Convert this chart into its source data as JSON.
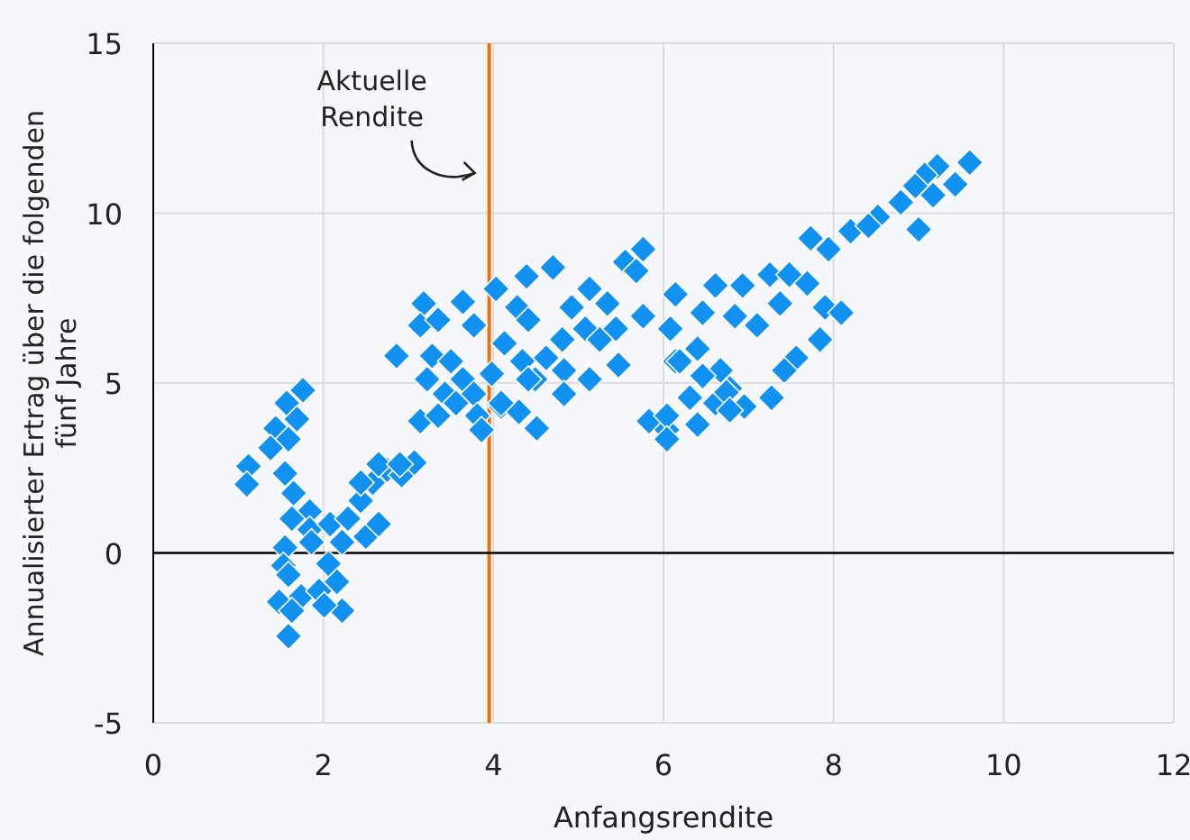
{
  "chart_data": {
    "type": "scatter",
    "xlabel": "Anfangsrendite",
    "ylabel": "Annualisierter Ertrag über die folgenden\nfünf Jahre",
    "xlim": [
      0,
      12
    ],
    "xticks": [
      0,
      2,
      4,
      6,
      8,
      10,
      12
    ],
    "ylim": [
      -5,
      15
    ],
    "yticks": [
      -5,
      0,
      5,
      10,
      15
    ],
    "grid": true,
    "marker": "diamond",
    "ref_lines": [
      {
        "axis": "x",
        "value": 3.95,
        "color": "#e8730c"
      },
      {
        "axis": "y",
        "value": 0,
        "color": "#000000"
      }
    ],
    "annotations": [
      {
        "text": "Aktuelle\nRendite",
        "x": 3.95,
        "y": 11.5
      }
    ],
    "series": [
      {
        "color": "#1191f0",
        "x": [
          1.76,
          1.57,
          1.44,
          1.69,
          1.59,
          1.38,
          1.12,
          1.1,
          1.55,
          1.65,
          1.84,
          1.63,
          1.55,
          1.53,
          1.59,
          1.48,
          1.74,
          2.06,
          2.16,
          1.95,
          2.22,
          1.63,
          1.59,
          2.01,
          1.84,
          2.08,
          2.29,
          2.5,
          2.44,
          2.58,
          2.75,
          2.92,
          3.07,
          2.65,
          2.22,
          1.86,
          2.86,
          3.18,
          3.14,
          3.35,
          3.64,
          3.77,
          3.28,
          3.5,
          3.22,
          3.43,
          3.64,
          3.77,
          3.14,
          3.35,
          3.56,
          3.81,
          3.86,
          4.09,
          4.3,
          4.39,
          4.28,
          4.41,
          4.13,
          4.34,
          3.98,
          4.49,
          5.76,
          5.55,
          4.7,
          5.13,
          4.92,
          5.34,
          5.76,
          6.14,
          6.08,
          5.08,
          5.25,
          5.44,
          5.47,
          4.81,
          4.62,
          4.83,
          5.13,
          4.83,
          4.41,
          4.09,
          4.51,
          5.83,
          6.04,
          6.31,
          6.14,
          6.4,
          2.65,
          2.9,
          2.44,
          7.73,
          8.2,
          7.94,
          6.61,
          6.93,
          7.25,
          7.48,
          7.69,
          7.37,
          7.1,
          6.84,
          6.46,
          7.9,
          8.09,
          7.84,
          7.56,
          7.42,
          7.27,
          6.95,
          6.78,
          6.67,
          6.46,
          6.61,
          6.4,
          6.04,
          6.04,
          6.19,
          9.6,
          9.22,
          9.07,
          9.43,
          9.17,
          8.79,
          8.96,
          8.52,
          8.41,
          9.0,
          5.68,
          6.74,
          6.78,
          4.03
        ],
        "values": [
          4.79,
          4.41,
          3.67,
          3.94,
          3.35,
          3.09,
          2.55,
          2.02,
          2.34,
          1.76,
          1.22,
          1.01,
          0.16,
          -0.37,
          -0.64,
          -1.44,
          -1.28,
          -0.32,
          -0.85,
          -1.12,
          -1.7,
          -1.7,
          -2.45,
          -1.54,
          0.69,
          0.85,
          1.01,
          0.48,
          1.54,
          2.07,
          2.45,
          2.29,
          2.66,
          0.85,
          0.32,
          0.32,
          5.8,
          7.34,
          6.7,
          6.86,
          7.39,
          6.7,
          5.8,
          5.64,
          5.11,
          4.68,
          5.11,
          4.68,
          3.88,
          4.04,
          4.41,
          4.04,
          3.62,
          4.31,
          4.15,
          8.14,
          7.23,
          6.86,
          6.17,
          5.64,
          5.27,
          5.11,
          8.94,
          8.56,
          8.4,
          7.77,
          7.23,
          7.34,
          6.97,
          7.61,
          6.6,
          6.6,
          6.28,
          6.6,
          5.53,
          6.28,
          5.74,
          5.37,
          5.11,
          4.68,
          5.11,
          4.41,
          3.67,
          3.88,
          3.62,
          4.57,
          5.64,
          6.01,
          2.61,
          2.61,
          2.07,
          9.26,
          9.47,
          8.94,
          7.87,
          7.87,
          8.19,
          8.19,
          7.93,
          7.34,
          6.7,
          6.97,
          7.07,
          7.23,
          7.07,
          6.28,
          5.74,
          5.37,
          4.57,
          4.31,
          4.84,
          5.37,
          5.21,
          4.41,
          3.78,
          4.04,
          3.35,
          5.64,
          11.49,
          11.38,
          11.12,
          10.85,
          10.53,
          10.32,
          10.8,
          9.89,
          9.63,
          9.52,
          8.3,
          4.73,
          4.2,
          7.77
        ]
      }
    ]
  }
}
